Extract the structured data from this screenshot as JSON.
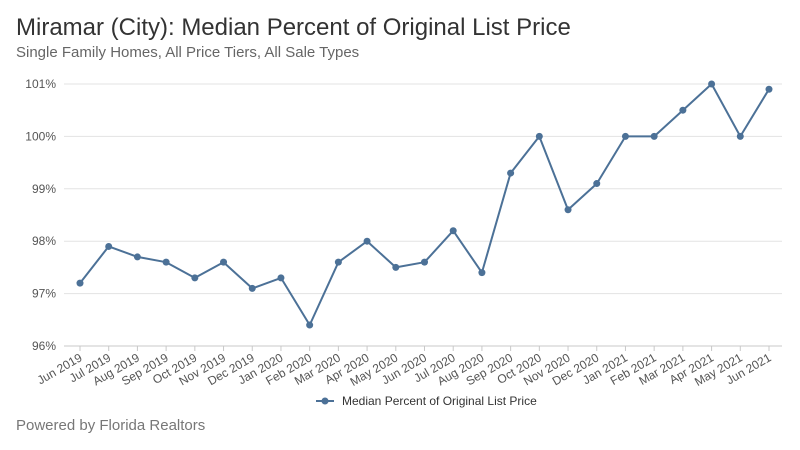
{
  "header": {
    "title": "Miramar (City): Median Percent of Original List Price",
    "subtitle": "Single Family Homes, All Price Tiers, All Sale Types"
  },
  "footer": {
    "text": "Powered by Florida Realtors"
  },
  "colors": {
    "series": "#4c7197",
    "grid": "#e3e3e3",
    "axis": "#c8c8c8"
  },
  "chart_data": {
    "type": "line",
    "title": "Miramar (City): Median Percent of Original List Price",
    "subtitle": "Single Family Homes, All Price Tiers, All Sale Types",
    "xlabel": "",
    "ylabel": "",
    "ylim": [
      96,
      101
    ],
    "yticks": [
      96,
      97,
      98,
      99,
      100,
      101
    ],
    "ytick_labels": [
      "96%",
      "97%",
      "98%",
      "99%",
      "100%",
      "101%"
    ],
    "grid": true,
    "legend_position": "bottom-center",
    "categories": [
      "Jun 2019",
      "Jul 2019",
      "Aug 2019",
      "Sep 2019",
      "Oct 2019",
      "Nov 2019",
      "Dec 2019",
      "Jan 2020",
      "Feb 2020",
      "Mar 2020",
      "Apr 2020",
      "May 2020",
      "Jun 2020",
      "Jul 2020",
      "Aug 2020",
      "Sep 2020",
      "Oct 2020",
      "Nov 2020",
      "Dec 2020",
      "Jan 2021",
      "Feb 2021",
      "Mar 2021",
      "Apr 2021",
      "May 2021",
      "Jun 2021"
    ],
    "series": [
      {
        "name": "Median Percent of Original List Price",
        "values": [
          97.2,
          97.9,
          97.7,
          97.6,
          97.3,
          97.6,
          97.1,
          97.3,
          96.4,
          97.6,
          98.0,
          97.5,
          97.6,
          98.2,
          97.4,
          99.3,
          100.0,
          98.6,
          99.1,
          100.0,
          100.0,
          100.5,
          101.0,
          100.0,
          100.9
        ]
      }
    ]
  }
}
